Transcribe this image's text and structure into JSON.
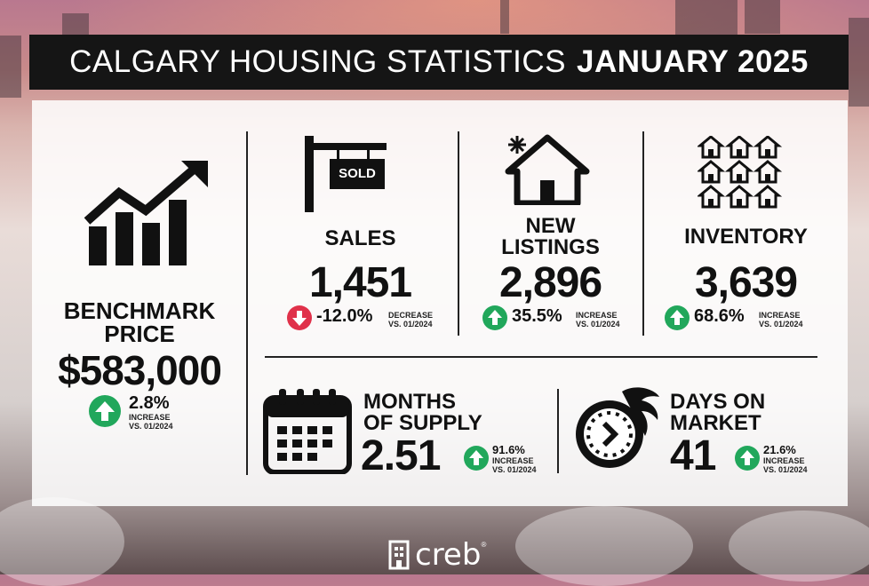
{
  "header": {
    "title_regular": "CALGARY HOUSING STATISTICS",
    "title_bold": "JANUARY 2025"
  },
  "benchmark": {
    "label_line1": "BENCHMARK",
    "label_line2": "PRICE",
    "value": "$583,000",
    "change": "2.8%",
    "direction": "INCREASE",
    "compare": "VS. 01/2024",
    "icon": "trending-up-chart-icon"
  },
  "sales": {
    "sign": "SOLD",
    "label": "SALES",
    "value": "1,451",
    "change": "-12.0%",
    "direction": "DECREASE",
    "compare": "VS. 01/2024",
    "icon": "sold-sign-icon"
  },
  "new_listings": {
    "label_line1": "NEW",
    "label_line2": "LISTINGS",
    "value": "2,896",
    "change": "35.5%",
    "direction": "INCREASE",
    "compare": "VS. 01/2024",
    "icon": "new-house-icon"
  },
  "inventory": {
    "label": "INVENTORY",
    "value": "3,639",
    "change": "68.6%",
    "direction": "INCREASE",
    "compare": "VS. 01/2024",
    "icon": "houses-grid-icon"
  },
  "months_supply": {
    "label_line1": "MONTHS",
    "label_line2": "OF SUPPLY",
    "value": "2.51",
    "change": "91.6%",
    "direction": "INCREASE",
    "compare": "VS. 01/2024",
    "icon": "calendar-icon"
  },
  "days_on_market": {
    "label_line1": "DAYS ON",
    "label_line2": "MARKET",
    "value": "41",
    "change": "21.6%",
    "direction": "INCREASE",
    "compare": "VS. 01/2024",
    "icon": "fast-clock-icon"
  },
  "brand": {
    "name": "creb",
    "mark": "®"
  },
  "colors": {
    "increase": "#21a75b",
    "decrease": "#e0314a",
    "title_bg": "#151515"
  }
}
